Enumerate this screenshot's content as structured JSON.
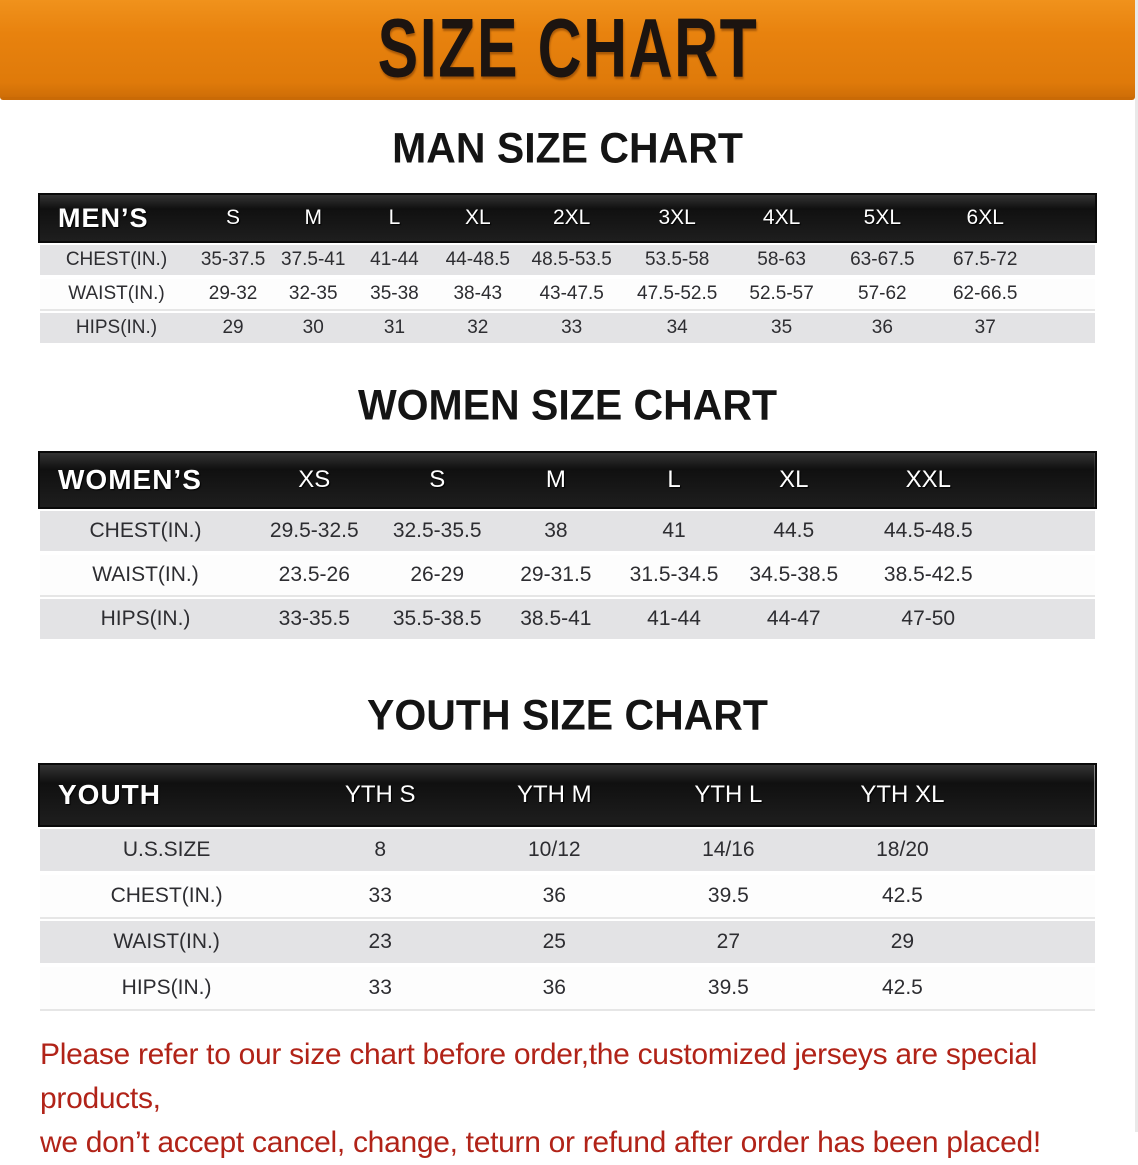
{
  "banner": {
    "title": "SIZE CHART"
  },
  "colors": {
    "banner_bg": "#E8820E",
    "header_band": "#1A1A1A",
    "row_alt": "#E3E3E5",
    "disclaimer_text": "#B12318"
  },
  "sections": [
    {
      "heading": "MAN SIZE CHART",
      "table": {
        "header_label": "MEN’S",
        "columns": [
          "S",
          "M",
          "L",
          "XL",
          "2XL",
          "3XL",
          "4XL",
          "5XL",
          "6XL"
        ],
        "rows": [
          {
            "label": "CHEST(IN.)",
            "values": [
              "35-37.5",
              "37.5-41",
              "41-44",
              "44-48.5",
              "48.5-53.5",
              "53.5-58",
              "58-63",
              "63-67.5",
              "67.5-72"
            ]
          },
          {
            "label": "WAIST(IN.)",
            "values": [
              "29-32",
              "32-35",
              "35-38",
              "38-43",
              "43-47.5",
              "47.5-52.5",
              "52.5-57",
              "57-62",
              "62-66.5"
            ]
          },
          {
            "label": "HIPS(IN.)",
            "values": [
              "29",
              "30",
              "31",
              "32",
              "33",
              "34",
              "35",
              "36",
              "37"
            ]
          }
        ]
      }
    },
    {
      "heading": "WOMEN SIZE CHART",
      "table": {
        "header_label": "WOMEN’S",
        "columns": [
          "XS",
          "S",
          "M",
          "L",
          "XL",
          "XXL"
        ],
        "rows": [
          {
            "label": "CHEST(IN.)",
            "values": [
              "29.5-32.5",
              "32.5-35.5",
              "38",
              "41",
              "44.5",
              "44.5-48.5"
            ]
          },
          {
            "label": "WAIST(IN.)",
            "values": [
              "23.5-26",
              "26-29",
              "29-31.5",
              "31.5-34.5",
              "34.5-38.5",
              "38.5-42.5"
            ]
          },
          {
            "label": "HIPS(IN.)",
            "values": [
              "33-35.5",
              "35.5-38.5",
              "38.5-41",
              "41-44",
              "44-47",
              "47-50"
            ]
          }
        ]
      }
    },
    {
      "heading": "YOUTH SIZE CHART",
      "table": {
        "header_label": "YOUTH",
        "columns": [
          "YTH S",
          "YTH M",
          "YTH L",
          "YTH XL"
        ],
        "rows": [
          {
            "label": "U.S.SIZE",
            "values": [
              "8",
              "10/12",
              "14/16",
              "18/20"
            ]
          },
          {
            "label": "CHEST(IN.)",
            "values": [
              "33",
              "36",
              "39.5",
              "42.5"
            ]
          },
          {
            "label": "WAIST(IN.)",
            "values": [
              "23",
              "25",
              "27",
              "29"
            ]
          },
          {
            "label": "HIPS(IN.)",
            "values": [
              "33",
              "36",
              "39.5",
              "42.5"
            ]
          }
        ]
      }
    }
  ],
  "disclaimer": {
    "line1": "Please refer to our size chart before order,the customized jerseys are special products,",
    "line2": "we don’t accept cancel, change, teturn or refund after order has been placed!"
  }
}
